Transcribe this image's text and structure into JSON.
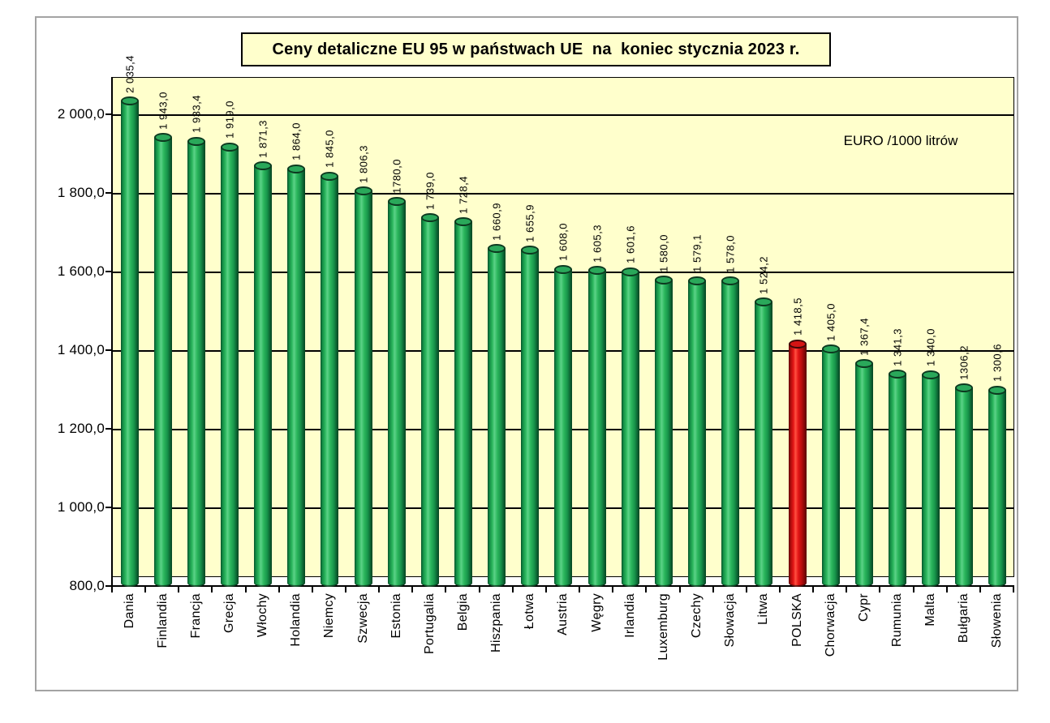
{
  "unit_note": "EURO /1000 litrów",
  "colors": {
    "wall_background": "#ffffcc",
    "title_background": "#ffffcc",
    "frame_border": "#a3a3a3",
    "bar_green": "#2cb75d",
    "bar_green_dark": "#07522a",
    "bar_green_light": "#5bd287",
    "bar_red": "#e31515",
    "bar_red_dark": "#5e0404",
    "bar_red_light": "#ff5040",
    "gridline": "#000000",
    "text": "#000000"
  },
  "chart_data": {
    "type": "bar",
    "title": "Ceny detaliczne EU 95 w państwach UE  na  koniec stycznia 2023 r.",
    "annotation": "EURO /1000 litrów",
    "xlabel": "",
    "ylabel": "",
    "categories": [
      "Dania",
      "Finlandia",
      "Francja",
      "Grecja",
      "Włochy",
      "Holandia",
      "Niemcy",
      "Szwecja",
      "Estonia",
      "Portugalia",
      "Belgia",
      "Hiszpania",
      "Łotwa",
      "Austria",
      "Węgry",
      "Irlandia",
      "Luxemburg",
      "Czechy",
      "Słowacja",
      "Litwa",
      "POLSKA",
      "Chorwacja",
      "Cypr",
      "Rumunia",
      "Malta",
      "Bułgaria",
      "Słowenia"
    ],
    "values": [
      2035.4,
      1943.0,
      1933.4,
      1919.0,
      1871.3,
      1864.0,
      1845.0,
      1806.3,
      1780.0,
      1739.0,
      1728.4,
      1660.9,
      1655.9,
      1608.0,
      1605.3,
      1601.6,
      1580.0,
      1579.1,
      1578.0,
      1524.2,
      1418.5,
      1405.0,
      1367.4,
      1341.3,
      1340.0,
      1306.2,
      1300.6
    ],
    "value_labels": [
      "2 035,4",
      "1 943,0",
      "1 933,4",
      "1 919,0",
      "1 871,3",
      "1 864,0",
      "1 845,0",
      "1 806,3",
      "1780,0",
      "1 739,0",
      "1 728,4",
      "1 660,9",
      "1 655,9",
      "1 608,0",
      "1 605,3",
      "1 601,6",
      "1 580,0",
      "1 579,1",
      "1 578,0",
      "1 524,2",
      "1 418,5",
      "1 405,0",
      "1 367,4",
      "1 341,3",
      "1 340,0",
      "1306,2",
      "1 300,6"
    ],
    "highlight": {
      "category": "POLSKA",
      "color": "#e31515"
    },
    "bar_color": "#2cb75d",
    "ylim": [
      800,
      2100
    ],
    "ytick_values": [
      2000,
      1800,
      1600,
      1400,
      1200,
      1000,
      800
    ],
    "ytick_labels": [
      "2 000,0",
      "1 800,0",
      "1 600,0",
      "1 400,0",
      "1 200,0",
      "1 000,0",
      "800,0"
    ],
    "gridline_values": [
      1000,
      1200,
      1400,
      1600,
      1800,
      2000
    ],
    "grid": "horizontal",
    "legend": "none"
  }
}
